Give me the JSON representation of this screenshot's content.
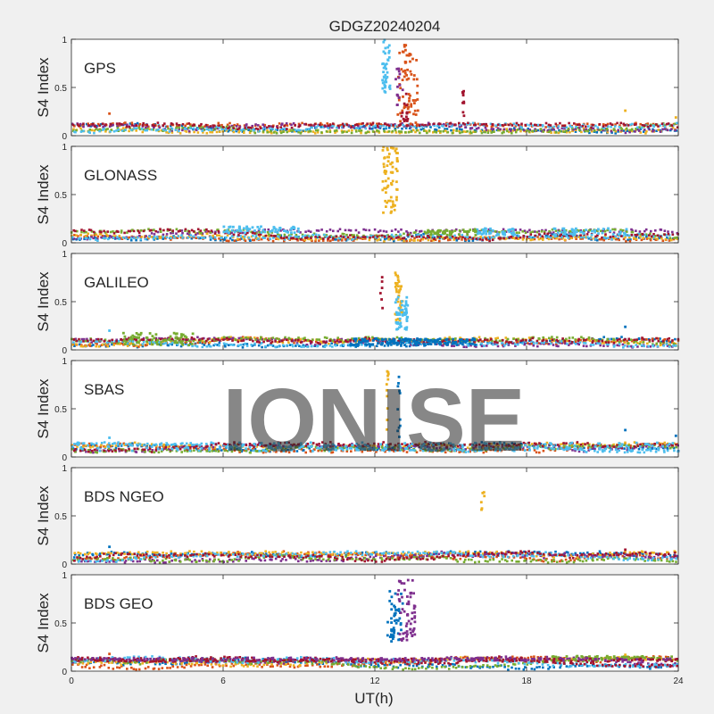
{
  "chart_data": {
    "type": "scatter",
    "title": "GDGZ20240204",
    "xlabel": "UT(h)",
    "xlim": [
      0,
      24
    ],
    "xticks": [
      "0",
      "6",
      "12",
      "18",
      "24"
    ],
    "watermark": "IONISE",
    "colors": [
      "#0072BD",
      "#D95319",
      "#EDB120",
      "#7E2F8E",
      "#77AC30",
      "#4DBEEE",
      "#A2142F"
    ],
    "panels": [
      {
        "name": "GPS",
        "ylabel": "S4 Index",
        "ylim": [
          0,
          1
        ],
        "yticks": [
          "0",
          "0.5",
          "1"
        ],
        "baseline": [
          0.04,
          0.12
        ],
        "spikes": [
          {
            "color": "#4DBEEE",
            "x": [
              12.3,
              12.6
            ],
            "y": [
              0.45,
              1.0
            ],
            "n": 40
          },
          {
            "color": "#D95319",
            "x": [
              12.9,
              13.7
            ],
            "y": [
              0.1,
              0.95
            ],
            "n": 70
          },
          {
            "color": "#7E2F8E",
            "x": [
              12.8,
              13.1
            ],
            "y": [
              0.3,
              0.7
            ],
            "n": 15
          },
          {
            "color": "#A2142F",
            "x": [
              13.0,
              13.3
            ],
            "y": [
              0.15,
              0.45
            ],
            "n": 15
          },
          {
            "color": "#A2142F",
            "x": [
              15.45,
              15.55
            ],
            "y": [
              0.2,
              0.48
            ],
            "n": 10
          }
        ],
        "outliers": [
          {
            "color": "#D95319",
            "x": 1.5,
            "y": 0.23
          },
          {
            "color": "#EDB120",
            "x": 21.9,
            "y": 0.26
          },
          {
            "color": "#EDB120",
            "x": 23.9,
            "y": 0.19
          }
        ]
      },
      {
        "name": "GLONASS",
        "ylabel": "S4 Index",
        "ylim": [
          0,
          1
        ],
        "yticks": [
          "0",
          "0.5",
          "1"
        ],
        "baseline": [
          0.03,
          0.13
        ],
        "spikes": [
          {
            "color": "#EDB120",
            "x": [
              12.3,
              12.9
            ],
            "y": [
              0.3,
              1.0
            ],
            "n": 70
          },
          {
            "color": "#4DBEEE",
            "x": [
              6.0,
              9.0
            ],
            "y": [
              0.1,
              0.17
            ],
            "n": 60
          },
          {
            "color": "#4DBEEE",
            "x": [
              16.0,
              17.5
            ],
            "y": [
              0.08,
              0.15
            ],
            "n": 40
          },
          {
            "color": "#4DBEEE",
            "x": [
              19.0,
              22.0
            ],
            "y": [
              0.08,
              0.15
            ],
            "n": 50
          },
          {
            "color": "#77AC30",
            "x": [
              14.0,
              16.0
            ],
            "y": [
              0.08,
              0.13
            ],
            "n": 40
          }
        ],
        "outliers": []
      },
      {
        "name": "GALILEO",
        "ylabel": "S4 Index",
        "ylim": [
          0,
          1
        ],
        "yticks": [
          "0",
          "0.5",
          "1"
        ],
        "baseline": [
          0.04,
          0.12
        ],
        "spikes": [
          {
            "color": "#EDB120",
            "x": [
              12.8,
              13.1
            ],
            "y": [
              0.3,
              0.8
            ],
            "n": 35
          },
          {
            "color": "#4DBEEE",
            "x": [
              12.8,
              13.3
            ],
            "y": [
              0.2,
              0.55
            ],
            "n": 50
          },
          {
            "color": "#A2142F",
            "x": [
              12.2,
              12.3
            ],
            "y": [
              0.4,
              0.8
            ],
            "n": 6
          },
          {
            "color": "#0072BD",
            "x": [
              11.0,
              16.0
            ],
            "y": [
              0.05,
              0.12
            ],
            "n": 140
          },
          {
            "color": "#77AC30",
            "x": [
              2.0,
              4.8
            ],
            "y": [
              0.05,
              0.18
            ],
            "n": 60
          }
        ],
        "outliers": [
          {
            "color": "#4DBEEE",
            "x": 1.5,
            "y": 0.2
          },
          {
            "color": "#0072BD",
            "x": 21.9,
            "y": 0.24
          }
        ]
      },
      {
        "name": "SBAS",
        "ylabel": "S4 Index",
        "ylim": [
          0,
          1
        ],
        "yticks": [
          "0",
          "0.5",
          "1"
        ],
        "baseline": [
          0.06,
          0.14
        ],
        "spikes": [
          {
            "color": "#EDB120",
            "x": [
              12.45,
              12.55
            ],
            "y": [
              0.2,
              0.9
            ],
            "n": 12
          },
          {
            "color": "#0072BD",
            "x": [
              12.9,
              13.0
            ],
            "y": [
              0.2,
              0.85
            ],
            "n": 12
          },
          {
            "color": "#4DBEEE",
            "x": [
              0.0,
              24.0
            ],
            "y": [
              0.06,
              0.15
            ],
            "n": 200
          }
        ],
        "outliers": [
          {
            "color": "#4DBEEE",
            "x": 1.5,
            "y": 0.2
          },
          {
            "color": "#0072BD",
            "x": 21.9,
            "y": 0.28
          },
          {
            "color": "#0072BD",
            "x": 23.9,
            "y": 0.22
          }
        ]
      },
      {
        "name": "BDS NGEO",
        "ylabel": "S4 Index",
        "ylim": [
          0,
          1
        ],
        "yticks": [
          "0",
          "0.5",
          "1"
        ],
        "baseline": [
          0.03,
          0.12
        ],
        "spikes": [
          {
            "color": "#EDB120",
            "x": [
              16.2,
              16.35
            ],
            "y": [
              0.55,
              0.85
            ],
            "n": 6
          }
        ],
        "outliers": [
          {
            "color": "#0072BD",
            "x": 1.5,
            "y": 0.18
          },
          {
            "color": "#A2142F",
            "x": 21.9,
            "y": 0.15
          }
        ]
      },
      {
        "name": "BDS GEO",
        "ylabel": "S4 Index",
        "ylim": [
          0,
          1
        ],
        "yticks": [
          "0",
          "0.5",
          "1"
        ],
        "baseline": [
          0.03,
          0.14
        ],
        "spikes": [
          {
            "color": "#0072BD",
            "x": [
              12.5,
              13.1
            ],
            "y": [
              0.3,
              0.85
            ],
            "n": 50
          },
          {
            "color": "#7E2F8E",
            "x": [
              12.9,
              13.6
            ],
            "y": [
              0.3,
              0.95
            ],
            "n": 60
          },
          {
            "color": "#77AC30",
            "x": [
              19.0,
              24.0
            ],
            "y": [
              0.12,
              0.16
            ],
            "n": 50
          },
          {
            "color": "#A2142F",
            "x": [
              0.0,
              24.0
            ],
            "y": [
              0.1,
              0.13
            ],
            "n": 160
          },
          {
            "color": "#7E2F8E",
            "x": [
              0.0,
              24.0
            ],
            "y": [
              0.11,
              0.14
            ],
            "n": 160
          }
        ],
        "outliers": [
          {
            "color": "#D95319",
            "x": 1.5,
            "y": 0.18
          },
          {
            "color": "#EDB120",
            "x": 21.9,
            "y": 0.17
          }
        ]
      }
    ]
  }
}
